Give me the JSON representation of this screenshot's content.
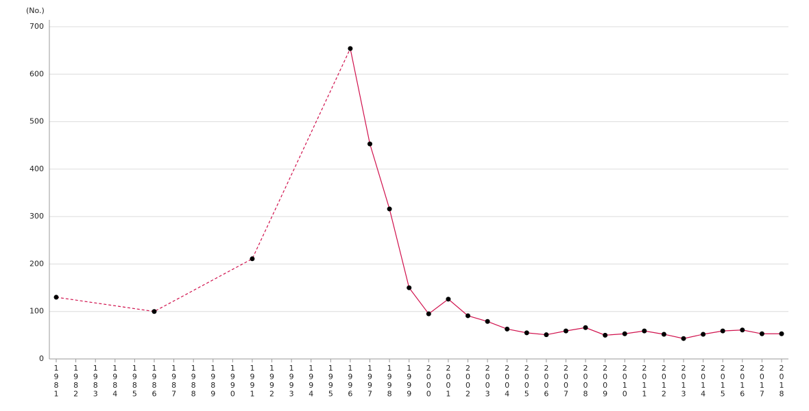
{
  "chart_data": {
    "type": "line",
    "y_label": "(No.)",
    "x": [
      1981,
      1986,
      1991,
      1996,
      1997,
      1998,
      1999,
      2000,
      2001,
      2002,
      2003,
      2004,
      2005,
      2006,
      2007,
      2008,
      2009,
      2010,
      2011,
      2012,
      2013,
      2014,
      2015,
      2016,
      2017,
      2018
    ],
    "series": [
      {
        "color": "#d0104c",
        "values": [
          130,
          100,
          211,
          654,
          453,
          316,
          150,
          95,
          126,
          91,
          79,
          63,
          55,
          51,
          59,
          66,
          50,
          53,
          59,
          52,
          43,
          52,
          59,
          61,
          53,
          53
        ]
      }
    ],
    "xlim": [
      1981,
      2018
    ],
    "xticks": [
      1981,
      1982,
      1983,
      1984,
      1985,
      1986,
      1987,
      1988,
      1989,
      1990,
      1991,
      1992,
      1993,
      1994,
      1995,
      1996,
      1997,
      1998,
      1999,
      2000,
      2001,
      2002,
      2003,
      2004,
      2005,
      2006,
      2007,
      2008,
      2009,
      2010,
      2011,
      2012,
      2013,
      2014,
      2015,
      2016,
      2017,
      2018
    ],
    "ylim": [
      0,
      700
    ],
    "yticks": [
      0,
      100,
      200,
      300,
      400,
      500,
      600,
      700
    ],
    "grid": true
  }
}
